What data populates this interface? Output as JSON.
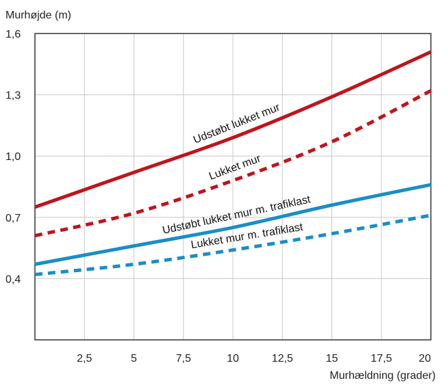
{
  "chart_data": {
    "type": "line",
    "title": "",
    "ylabel": "Murhøjde (m)",
    "xlabel": "Murhældning (grader)",
    "xlim": [
      0,
      20
    ],
    "ylim": [
      0.1,
      1.6
    ],
    "xticks": [
      2.5,
      5,
      7.5,
      10,
      12.5,
      15,
      17.5,
      20
    ],
    "xtick_labels": [
      "2,5",
      "5",
      "7,5",
      "10",
      "12,5",
      "15",
      "17,5",
      "20"
    ],
    "yticks": [
      0.4,
      0.7,
      1.0,
      1.3,
      1.6
    ],
    "ytick_labels": [
      "0,4",
      "0,7",
      "1,0",
      "1,3",
      "1,6"
    ],
    "grid": true,
    "series": [
      {
        "name": "Udstøbt lukket mur",
        "color": "#c0141c",
        "dashed": false,
        "x": [
          0,
          5,
          10,
          15,
          20
        ],
        "y": [
          0.75,
          0.92,
          1.09,
          1.29,
          1.51
        ],
        "label_at_x": 10.4
      },
      {
        "name": "Lukket mur",
        "color": "#c0141c",
        "dashed": true,
        "x": [
          0,
          5,
          10,
          15,
          20
        ],
        "y": [
          0.61,
          0.72,
          0.88,
          1.07,
          1.32
        ],
        "label_at_x": 10.3
      },
      {
        "name": "Udstøbt lukket mur m. trafiklast",
        "color": "#1a8ec5",
        "dashed": false,
        "x": [
          0,
          5,
          10,
          15,
          20
        ],
        "y": [
          0.47,
          0.56,
          0.65,
          0.76,
          0.86
        ],
        "label_at_x": 10.3
      },
      {
        "name": "Lukket mur m. trafiklast",
        "color": "#1a8ec5",
        "dashed": true,
        "x": [
          0,
          5,
          10,
          15,
          20
        ],
        "y": [
          0.42,
          0.47,
          0.54,
          0.62,
          0.71
        ],
        "label_at_x": 10.8
      }
    ]
  }
}
